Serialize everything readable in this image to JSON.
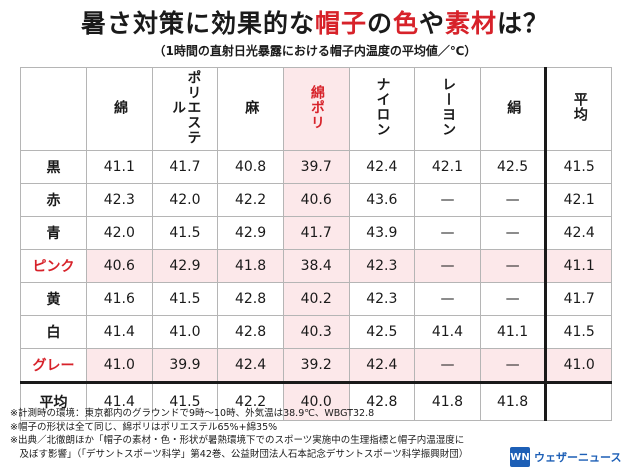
{
  "title": {
    "part1": "暑さ対策に効果的な",
    "part2": "帽子",
    "part3": "の",
    "part4": "色",
    "part5": "や",
    "part6": "素材",
    "part7": "は？"
  },
  "subtitle": "（1時間の直射日光暴露における帽子内温度の平均値／℃）",
  "chart_data": {
    "type": "table",
    "columns": [
      "綿",
      "ポリエステル",
      "麻",
      "綿ポリ",
      "ナイロン",
      "レーヨン",
      "絹",
      "平均"
    ],
    "rows": [
      {
        "label": "黒",
        "values": [
          "41.1",
          "41.7",
          "40.8",
          "39.7",
          "42.4",
          "42.1",
          "42.5",
          "41.5"
        ]
      },
      {
        "label": "赤",
        "values": [
          "42.3",
          "42.0",
          "42.2",
          "40.6",
          "43.6",
          "—",
          "—",
          "42.1"
        ]
      },
      {
        "label": "青",
        "values": [
          "42.0",
          "41.5",
          "42.9",
          "41.7",
          "43.9",
          "—",
          "—",
          "42.4"
        ]
      },
      {
        "label": "ピンク",
        "values": [
          "40.6",
          "42.9",
          "41.8",
          "38.4",
          "42.3",
          "—",
          "—",
          "41.1"
        ]
      },
      {
        "label": "黄",
        "values": [
          "41.6",
          "41.5",
          "42.8",
          "40.2",
          "42.3",
          "—",
          "—",
          "41.7"
        ]
      },
      {
        "label": "白",
        "values": [
          "41.4",
          "41.0",
          "42.8",
          "40.3",
          "42.5",
          "41.4",
          "41.1",
          "41.5"
        ]
      },
      {
        "label": "グレー",
        "values": [
          "41.0",
          "39.9",
          "42.4",
          "39.2",
          "42.4",
          "—",
          "—",
          "41.0"
        ]
      },
      {
        "label": "平均",
        "values": [
          "41.4",
          "41.5",
          "42.2",
          "40.0",
          "42.8",
          "41.8",
          "41.8",
          ""
        ]
      }
    ],
    "highlight_rows": [
      "ピンク",
      "グレー"
    ],
    "highlight_column": "綿ポリ",
    "highlight_color": "#fce8ea",
    "accent_color": "#d7222a"
  },
  "notes": [
    "※計測時の環境：東京都内のグラウンドで9時〜10時、外気温は38.9℃、WBGT32.8",
    "※帽子の形状は全て同じ、綿ポリはポリエステル65%+綿35%",
    "※出典／北徹朗ほか「帽子の素材・色・形状が暑熱環境下でのスポーツ実施中の生理指標と帽子内温湿度に",
    "　及ぼす影響」（「デサントスポーツ科学」第42巻、公益財団法人石本記念デサントスポーツ科学振興財団）"
  ],
  "logo": {
    "mark": "WN",
    "text": "ウェザーニュース",
    "color": "#1d5fb6"
  }
}
